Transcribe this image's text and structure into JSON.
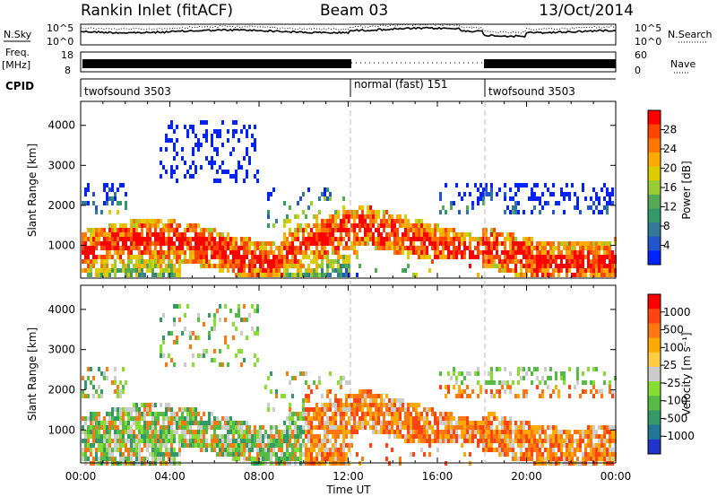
{
  "header": {
    "station": "Rankin Inlet (fitACF)",
    "beam": "Beam 03",
    "date": "13/Oct/2014"
  },
  "top_panels": {
    "nsky": {
      "label": "N.Sky",
      "right_label": "N.Search",
      "ticks": [
        "10^5",
        "10^0"
      ],
      "right_ticks": [
        "10^5",
        "10^0"
      ]
    },
    "freq": {
      "label_line1": "Freq.",
      "label_line2": "[MHz]",
      "ticks": [
        "18",
        "8"
      ],
      "right_ticks": [
        "60",
        "0"
      ],
      "right_label": "Nave"
    },
    "cpid": {
      "label": "CPID",
      "segments": [
        {
          "name": "twofsound 3503",
          "start_h": 0,
          "end_h": 12
        },
        {
          "name": "normal (fast) 151",
          "start_h": 12,
          "end_h": 18
        },
        {
          "name": "twofsound 3503",
          "start_h": 18,
          "end_h": 24
        }
      ]
    }
  },
  "chart_data": [
    {
      "type": "heatmap",
      "name": "power",
      "ylabel": "Slant Range [km]",
      "xlabel": "",
      "yticks": [
        "1000",
        "2000",
        "3000",
        "4000"
      ],
      "ylim": [
        180,
        4600
      ],
      "xlim_h": [
        0,
        24
      ],
      "colorbar": {
        "label": "Power [dB]",
        "ticks": [
          "4",
          "8",
          "12",
          "16",
          "20",
          "24",
          "28"
        ],
        "colors": [
          "#0022ff",
          "#2255cc",
          "#337799",
          "#339966",
          "#55aa55",
          "#99cc33",
          "#ddcc00",
          "#ffaa00",
          "#ff7700",
          "#ff4400",
          "#ff0000"
        ]
      }
    },
    {
      "type": "heatmap",
      "name": "velocity",
      "ylabel": "Slant Range [km]",
      "xlabel": "Time UT",
      "yticks": [
        "1000",
        "2000",
        "3000",
        "4000"
      ],
      "ylim": [
        180,
        4600
      ],
      "xlim_h": [
        0,
        24
      ],
      "xticks": [
        "00:00",
        "04:00",
        "08:00",
        "12:00",
        "16:00",
        "20:00",
        "00:00"
      ],
      "colorbar": {
        "label": "Velocity [m s⁻¹]",
        "ticks": [
          "1000",
          "500",
          "100",
          "25",
          "-25",
          "-100",
          "-500",
          "-1000"
        ],
        "colors": [
          "#2233cc",
          "#227799",
          "#339966",
          "#55bb44",
          "#88dd33",
          "#cccccc",
          "#ffcc44",
          "#ffaa00",
          "#ff7711",
          "#ff4411",
          "#ff0000"
        ]
      }
    }
  ]
}
